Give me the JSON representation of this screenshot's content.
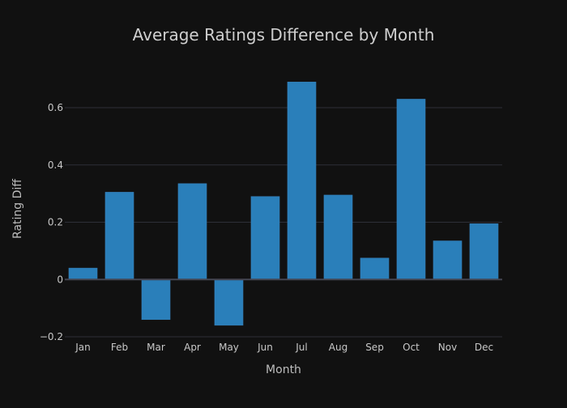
{
  "chart_data": {
    "type": "bar",
    "title": "Average Ratings Difference by Month",
    "xlabel": "Month",
    "ylabel": "Rating Diff",
    "categories": [
      "Jan",
      "Feb",
      "Mar",
      "Apr",
      "May",
      "Jun",
      "Jul",
      "Aug",
      "Sep",
      "Oct",
      "Nov",
      "Dec"
    ],
    "values": [
      0.04,
      0.305,
      -0.14,
      0.335,
      -0.16,
      0.29,
      0.69,
      0.295,
      0.075,
      0.63,
      0.135,
      0.195
    ],
    "ylim": [
      -0.2,
      0.75
    ],
    "yticks": [
      -0.2,
      0,
      0.2,
      0.4,
      0.6
    ],
    "ytick_labels": [
      "−0.2",
      "0",
      "0.2",
      "0.4",
      "0.6"
    ],
    "grid": true,
    "legend": "none",
    "colors": {
      "background": "#111111",
      "bar": "#2a7fba",
      "grid": "#2e2f38",
      "text": "#c8c8c8"
    }
  }
}
